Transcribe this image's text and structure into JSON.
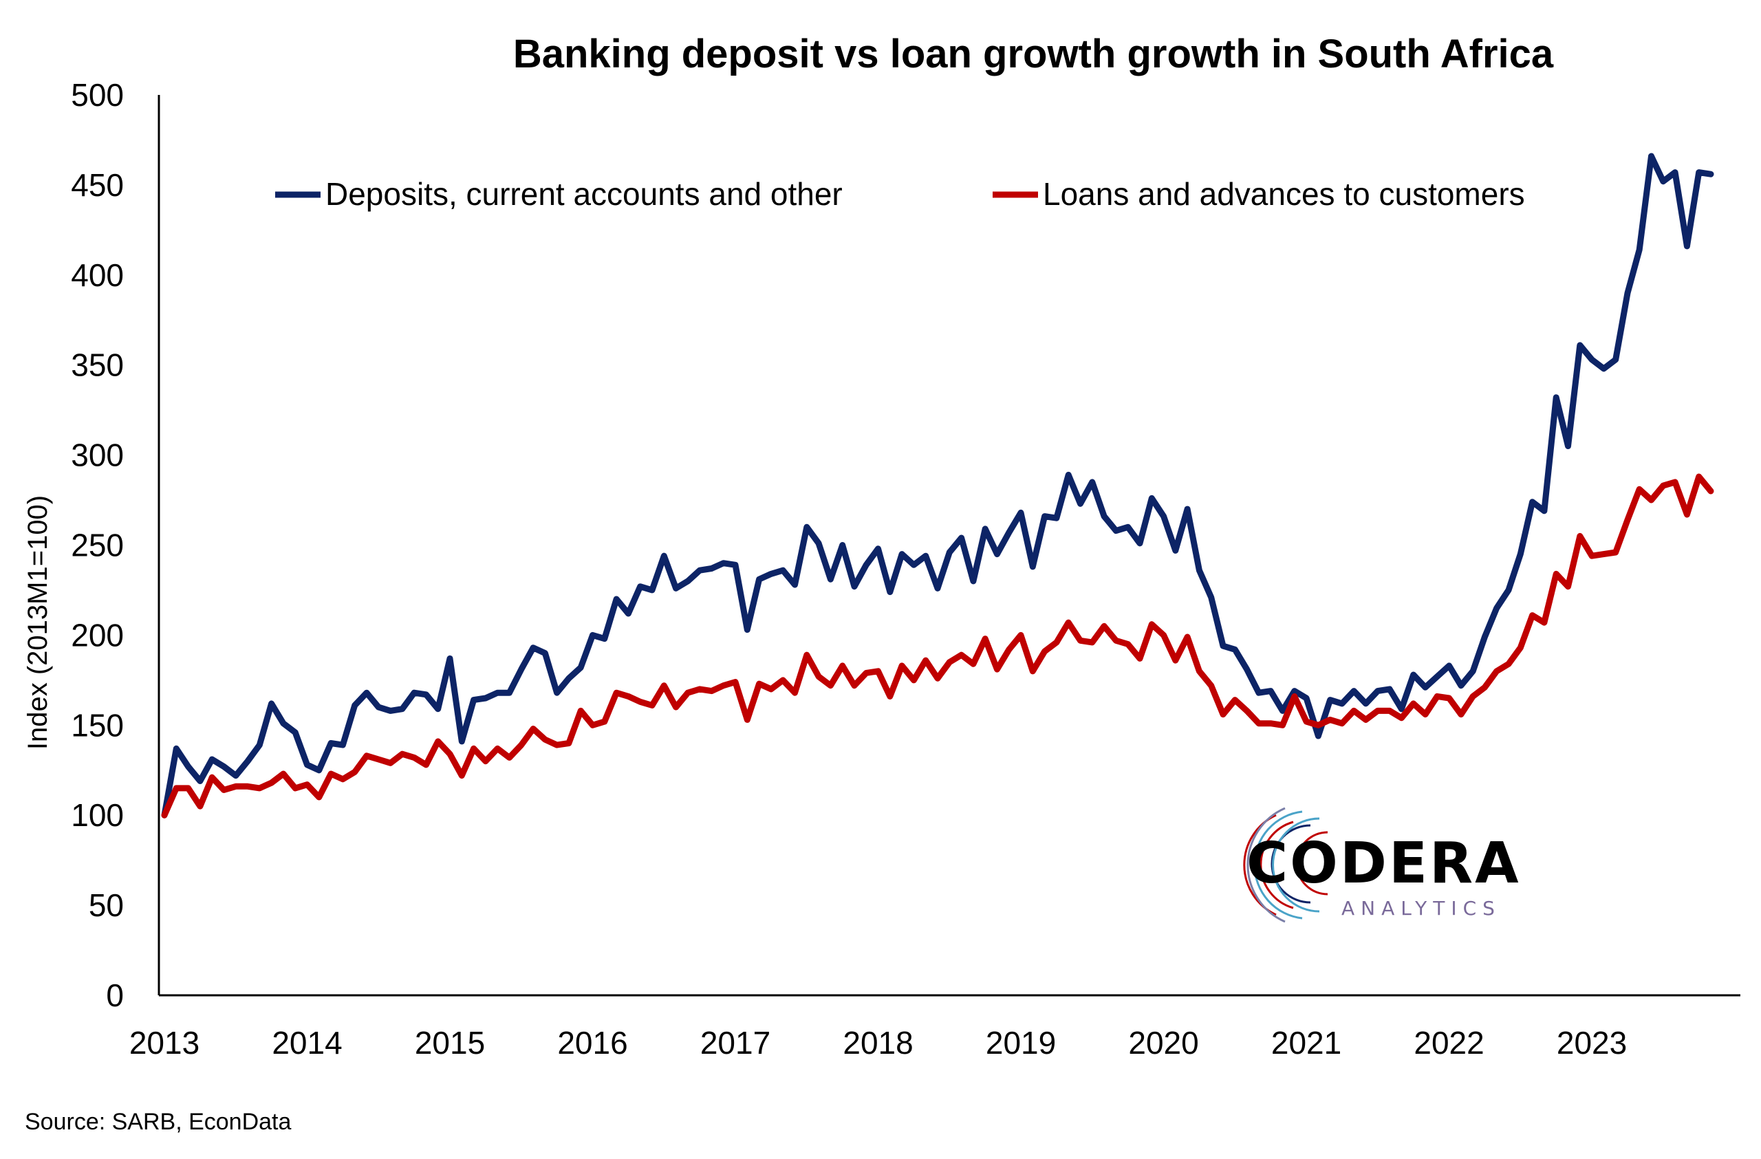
{
  "chart_data": {
    "type": "line",
    "title": "Banking deposit vs loan growth growth in South Africa",
    "ylabel": "Index (2013M1=100)",
    "xlabel": "",
    "ylim": [
      0,
      500
    ],
    "yticks": [
      0,
      50,
      100,
      150,
      200,
      250,
      300,
      350,
      400,
      450,
      500
    ],
    "xticks": [
      "2013",
      "2014",
      "2015",
      "2016",
      "2017",
      "2018",
      "2019",
      "2020",
      "2021",
      "2022",
      "2023"
    ],
    "x_start": "2013M1",
    "grid": false,
    "legend_position": "top",
    "series": [
      {
        "name": "Deposits, current accounts and other",
        "color": "#0d2466",
        "values": [
          100,
          137,
          127,
          119,
          131,
          127,
          122,
          130,
          139,
          162,
          151,
          146,
          128,
          125,
          140,
          139,
          161,
          168,
          160,
          158,
          159,
          168,
          167,
          159,
          187,
          141,
          164,
          165,
          168,
          168,
          181,
          193,
          190,
          168,
          176,
          182,
          200,
          198,
          220,
          212,
          227,
          225,
          244,
          226,
          230,
          236,
          237,
          240,
          239,
          203,
          231,
          234,
          236,
          228,
          260,
          251,
          231,
          250,
          227,
          239,
          248,
          224,
          245,
          239,
          244,
          226,
          246,
          254,
          230,
          259,
          245,
          257,
          268,
          238,
          266,
          265,
          289,
          273,
          285,
          266,
          258,
          260,
          251,
          276,
          266,
          247,
          270,
          236,
          221,
          194,
          192,
          181,
          168,
          169,
          158,
          169,
          165,
          144,
          164,
          162,
          169,
          162,
          169,
          170,
          159,
          178,
          171,
          177,
          183,
          172,
          180,
          199,
          215,
          225,
          245,
          274,
          269,
          332,
          305,
          361,
          353,
          348,
          353,
          390,
          414,
          466,
          452,
          457,
          416,
          457,
          456
        ]
      },
      {
        "name": "Loans and advances to customers",
        "color": "#c00000",
        "values": [
          100,
          115,
          115,
          105,
          121,
          114,
          116,
          116,
          115,
          118,
          123,
          115,
          117,
          110,
          123,
          120,
          124,
          133,
          131,
          129,
          134,
          132,
          128,
          141,
          134,
          122,
          137,
          130,
          137,
          132,
          139,
          148,
          142,
          139,
          140,
          158,
          150,
          152,
          168,
          166,
          163,
          161,
          172,
          160,
          168,
          170,
          169,
          172,
          174,
          153,
          173,
          170,
          175,
          168,
          189,
          177,
          172,
          183,
          172,
          179,
          180,
          166,
          183,
          175,
          186,
          176,
          185,
          189,
          184,
          198,
          181,
          192,
          200,
          180,
          191,
          196,
          207,
          197,
          196,
          205,
          197,
          195,
          187,
          206,
          200,
          186,
          199,
          180,
          172,
          156,
          164,
          158,
          151,
          151,
          150,
          166,
          152,
          150,
          153,
          151,
          158,
          153,
          158,
          158,
          154,
          162,
          156,
          166,
          165,
          156,
          166,
          171,
          180,
          184,
          193,
          211,
          207,
          234,
          227,
          255,
          244,
          245,
          246,
          264,
          281,
          275,
          283,
          285,
          267,
          288,
          280
        ]
      }
    ]
  },
  "logo": {
    "name": "CODERA",
    "tagline": "ANALYTICS"
  },
  "source": "Source: SARB, EconData"
}
